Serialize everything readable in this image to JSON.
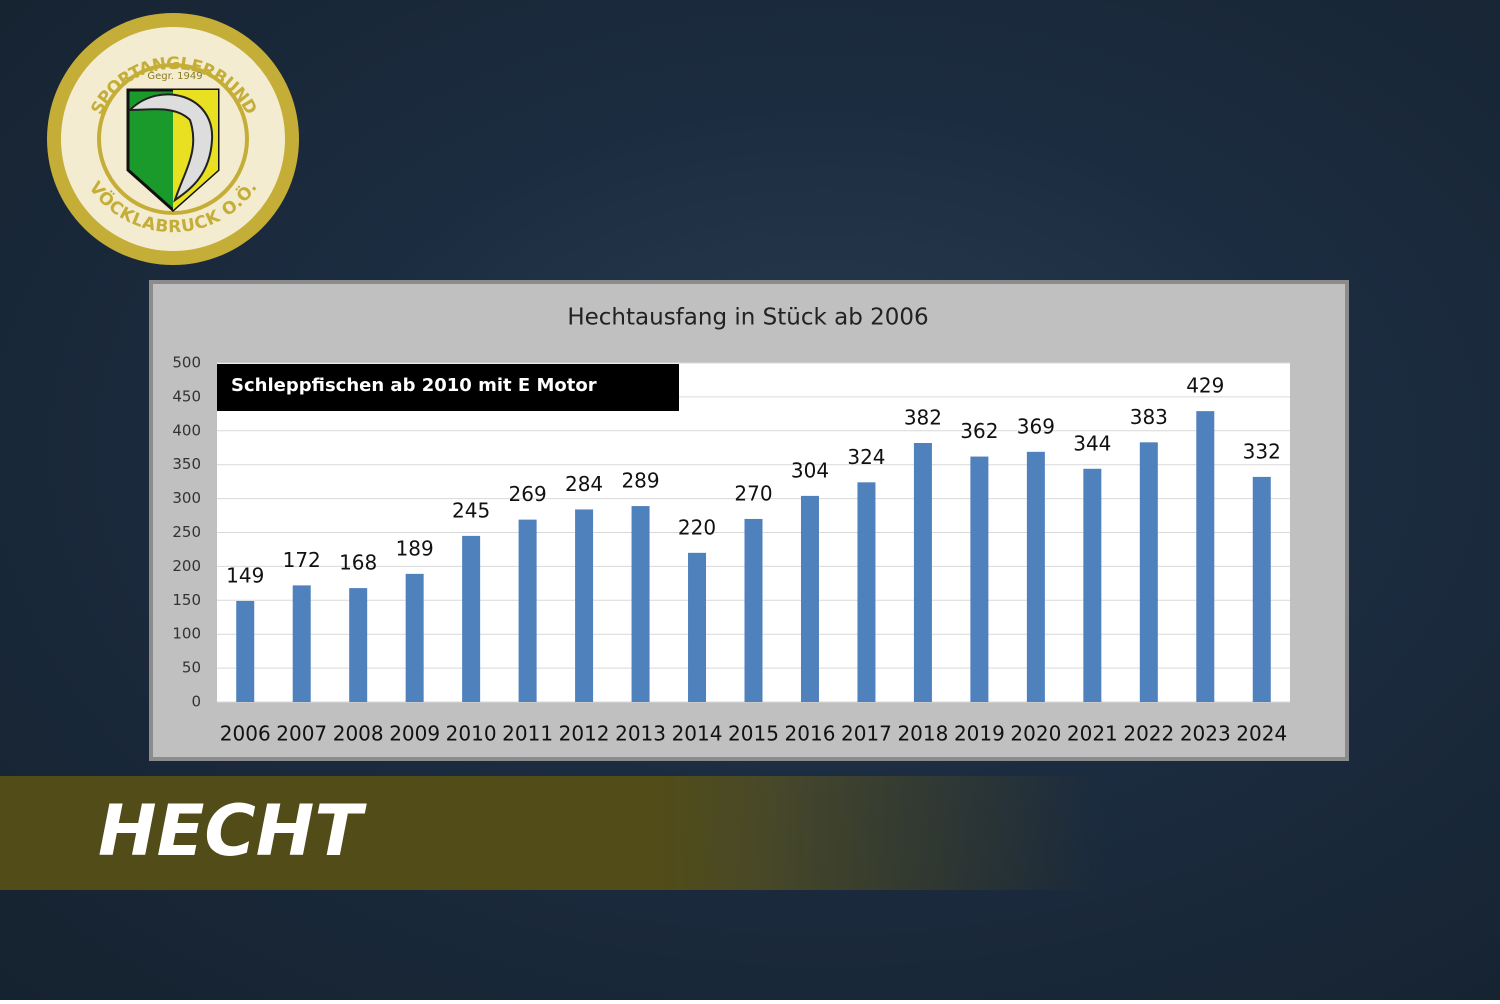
{
  "logo": {
    "top_text": "SPORTANGLERBUND",
    "founded": "Gegr. 1949",
    "bottom_text": "VÖCKLABRUCK O.Ö."
  },
  "banner": {
    "title": "HECHT"
  },
  "chart_data": {
    "type": "bar",
    "title": "Hechtausfang in Stück ab 2006",
    "annotation": "Schleppfischen ab 2010  mit E Motor",
    "categories": [
      "2006",
      "2007",
      "2008",
      "2009",
      "2010",
      "2011",
      "2012",
      "2013",
      "2014",
      "2015",
      "2016",
      "2017",
      "2018",
      "2019",
      "2020",
      "2021",
      "2022",
      "2023",
      "2024"
    ],
    "values": [
      149,
      172,
      168,
      189,
      245,
      269,
      284,
      289,
      220,
      270,
      304,
      324,
      382,
      362,
      369,
      344,
      383,
      429,
      332
    ],
    "color": "#4f81bd",
    "ylim": [
      0,
      500
    ],
    "yticks": [
      0,
      50,
      100,
      150,
      200,
      250,
      300,
      350,
      400,
      450,
      500
    ],
    "grid": true
  }
}
